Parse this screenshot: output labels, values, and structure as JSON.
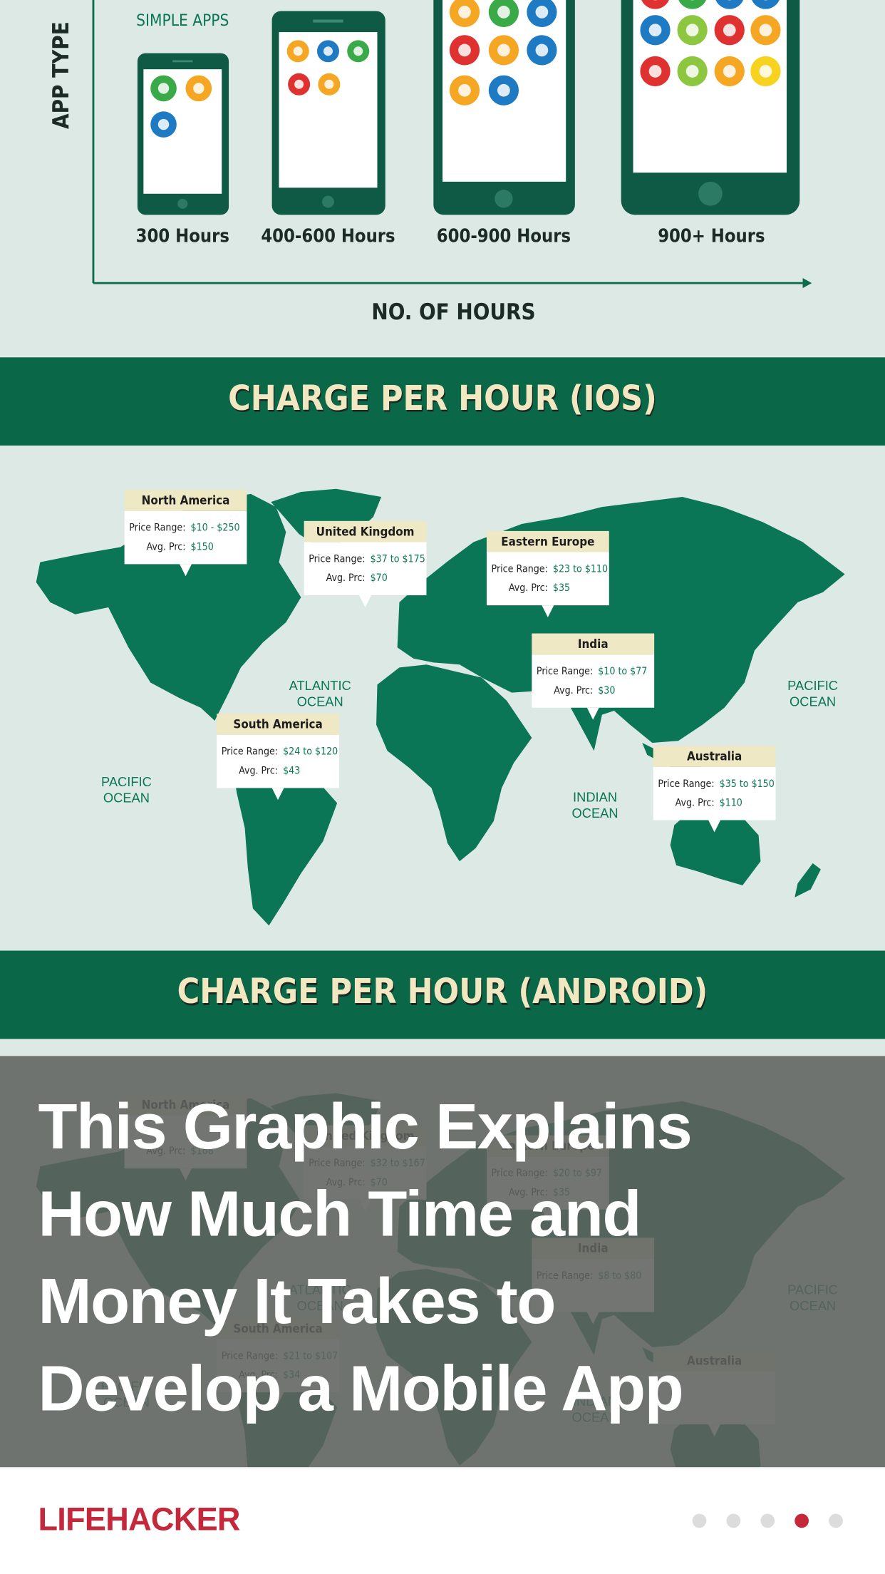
{
  "infographic": {
    "axis_y_label": "APP TYPE",
    "simple_apps": "SIMPLE APPS",
    "phones": [
      "300 Hours",
      "400-600 Hours",
      "600-900 Hours",
      "900+ Hours"
    ],
    "axis_x_label": "NO. OF HOURS"
  },
  "labels": {
    "price_range": "Price Range:",
    "avg": "Avg. Prc:"
  },
  "oceans": {
    "atlantic": [
      "ATLANTIC",
      "OCEAN"
    ],
    "pacific_east": [
      "PACIFIC",
      "OCEAN"
    ],
    "pacific_west": [
      "PACIFIC",
      "OCEAN"
    ],
    "indian": [
      "INDIAN",
      "OCEAN"
    ]
  },
  "ios": {
    "title": "CHARGE PER HOUR (IOS)",
    "regions": [
      {
        "name": "North America",
        "price_range": "$10 - $250",
        "avg": "$150"
      },
      {
        "name": "United Kingdom",
        "price_range": "$37 to $175",
        "avg": "$70"
      },
      {
        "name": "Eastern Europe",
        "price_range": "$23 to $110",
        "avg": "$35"
      },
      {
        "name": "India",
        "price_range": "$10 to $77",
        "avg": "$30"
      },
      {
        "name": "South America",
        "price_range": "$24 to $120",
        "avg": "$43"
      },
      {
        "name": "Australia",
        "price_range": "$35 to $150",
        "avg": "$110"
      }
    ]
  },
  "android": {
    "title": "CHARGE PER HOUR (ANDROID)",
    "regions": [
      {
        "name": "North America",
        "avg": "$168"
      },
      {
        "name": "United Kingdom",
        "price_range": "$32 to $167",
        "avg": "$70"
      },
      {
        "name": "Eastern Europe",
        "price_range": "$20 to $97",
        "avg": "$35"
      },
      {
        "name": "India",
        "price_range": "$8 to $80"
      },
      {
        "name": "South America",
        "price_range": "$21 to $107",
        "avg": "$34"
      },
      {
        "name": "Australia"
      }
    ]
  },
  "headline": [
    "This Graphic Explains",
    "How Much Time and",
    "Money It Takes to",
    "Develop a Mobile App"
  ],
  "brand": "LIFEHACKER"
}
